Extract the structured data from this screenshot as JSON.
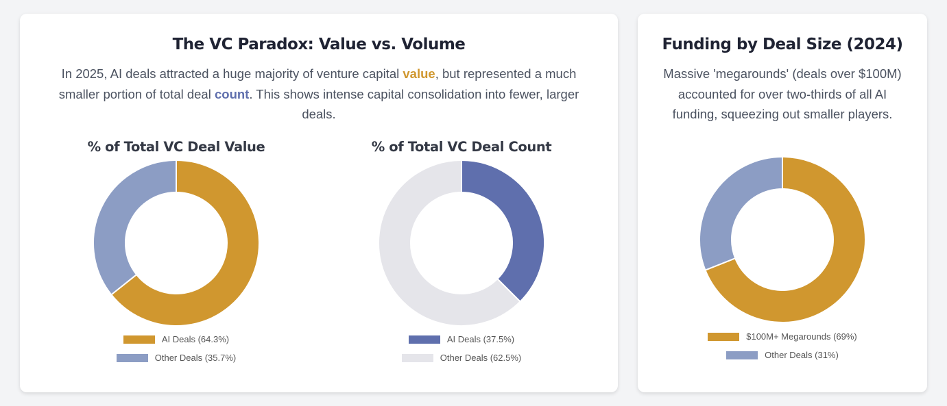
{
  "panel1": {
    "title": "The VC Paradox: Value vs. Volume",
    "desc_1": "In 2025, AI deals attracted a huge majority of venture capital ",
    "desc_value": "value",
    "desc_2": ", but represented a much smaller portion of total deal ",
    "desc_count": "count",
    "desc_3": ". This shows intense capital consolidation into fewer, larger deals."
  },
  "panel2": {
    "title": "Funding by Deal Size (2024)",
    "desc": "Massive 'megarounds' (deals over $100M) accounted for over two-thirds of all AI funding, squeezing out smaller players."
  },
  "chart_data": [
    {
      "type": "pie",
      "subtype": "doughnut",
      "title": "% of Total VC Deal Value",
      "categories": [
        "AI Deals (64.3%)",
        "Other Deals (35.7%)"
      ],
      "values": [
        64.3,
        35.7
      ],
      "colors": [
        "#d0972f",
        "#8c9dc4"
      ],
      "legend": "bottom"
    },
    {
      "type": "pie",
      "subtype": "doughnut",
      "title": "% of Total VC Deal Count",
      "categories": [
        "AI Deals (37.5%)",
        "Other Deals (62.5%)"
      ],
      "values": [
        37.5,
        62.5
      ],
      "colors": [
        "#5f6fad",
        "#e5e5ea"
      ],
      "legend": "bottom"
    },
    {
      "type": "pie",
      "subtype": "doughnut",
      "title": "",
      "categories": [
        "$100M+ Megarounds (69%)",
        "Other Deals (31%)"
      ],
      "values": [
        69,
        31
      ],
      "colors": [
        "#d0972f",
        "#8c9dc4"
      ],
      "legend": "bottom"
    }
  ]
}
